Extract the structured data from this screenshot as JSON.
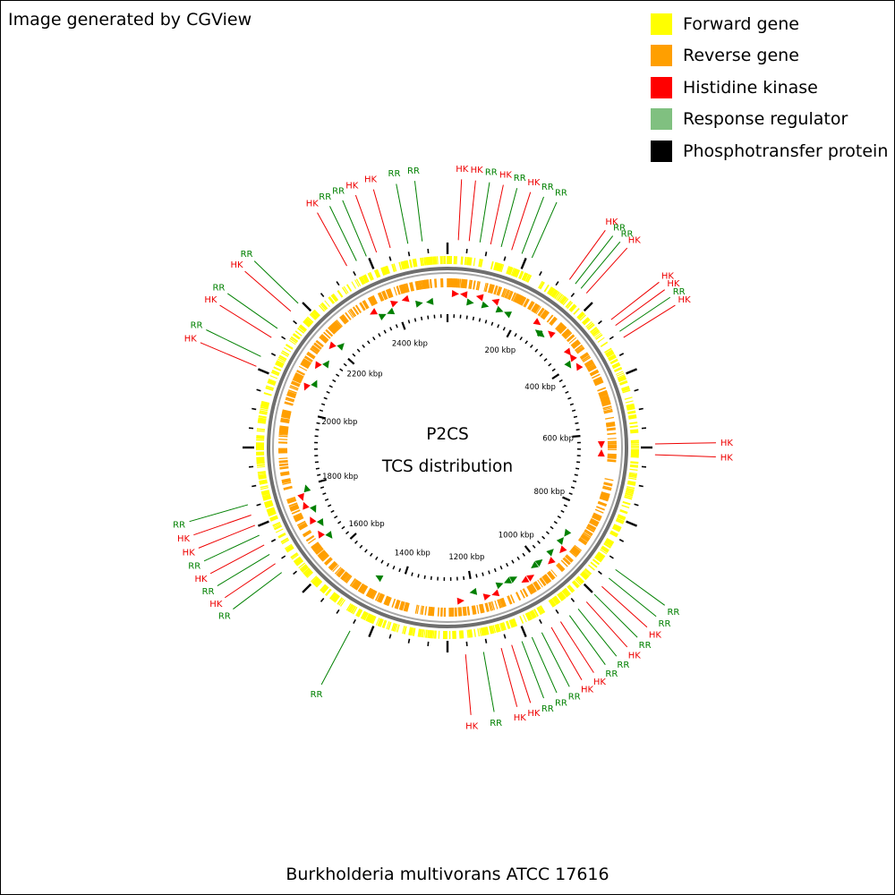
{
  "credit": "Image generated by CGView",
  "organism": "Burkholderia multivorans ATCC 17616",
  "center": {
    "line1": "P2CS",
    "line2": "TCS distribution"
  },
  "legend": [
    {
      "label": "Forward gene",
      "color": "#ffff00"
    },
    {
      "label": "Reverse gene",
      "color": "#ff9f00"
    },
    {
      "label": "Histidine kinase",
      "color": "#ff0000"
    },
    {
      "label": "Response regulator",
      "color": "#80c080"
    },
    {
      "label": "Phosphotransfer protein",
      "color": "#000000"
    }
  ],
  "ruler_labels": [
    "200 kbp",
    "400 kbp",
    "600 kbp",
    "800 kbp",
    "1000 kbp",
    "1200 kbp",
    "1400 kbp",
    "1600 kbp",
    "1800 kbp",
    "2000 kbp",
    "2200 kbp",
    "2400 kbp"
  ],
  "genome_length_kbp": 2540,
  "tcs_label_colors": {
    "HK": "#ee0000",
    "RR": "#008000"
  },
  "tcs_labels": [
    {
      "text": "HK",
      "deg": 3,
      "band": 0
    },
    {
      "text": "HK",
      "deg": 6,
      "band": 0
    },
    {
      "text": "RR",
      "deg": 9,
      "band": 0
    },
    {
      "text": "HK",
      "deg": 12,
      "band": 0
    },
    {
      "text": "RR",
      "deg": 15,
      "band": 0
    },
    {
      "text": "HK",
      "deg": 18,
      "band": 0
    },
    {
      "text": "RR",
      "deg": 21,
      "band": 0
    },
    {
      "text": "RR",
      "deg": 24,
      "band": 0
    },
    {
      "text": "HK",
      "deg": 36,
      "band": 0
    },
    {
      "text": "RR",
      "deg": 38,
      "band": 0
    },
    {
      "text": "RR",
      "deg": 40,
      "band": 0
    },
    {
      "text": "HK",
      "deg": 42,
      "band": 0
    },
    {
      "text": "HK",
      "deg": 52,
      "band": 0
    },
    {
      "text": "HK",
      "deg": 54,
      "band": 0
    },
    {
      "text": "RR",
      "deg": 56,
      "band": 0
    },
    {
      "text": "HK",
      "deg": 58,
      "band": 0
    },
    {
      "text": "HK",
      "deg": 89,
      "band": 0
    },
    {
      "text": "HK",
      "deg": 92,
      "band": 0
    },
    {
      "text": "RR",
      "deg": 126,
      "band": 0
    },
    {
      "text": "RR",
      "deg": 129,
      "band": 0
    },
    {
      "text": "HK",
      "deg": 132,
      "band": 0
    },
    {
      "text": "RR",
      "deg": 135,
      "band": 0
    },
    {
      "text": "HK",
      "deg": 138,
      "band": 0
    },
    {
      "text": "RR",
      "deg": 141,
      "band": 0
    },
    {
      "text": "RR",
      "deg": 144,
      "band": 0
    },
    {
      "text": "HK",
      "deg": 147,
      "band": 0
    },
    {
      "text": "HK",
      "deg": 150,
      "band": 0
    },
    {
      "text": "RR",
      "deg": 153,
      "band": 0
    },
    {
      "text": "RR",
      "deg": 156,
      "band": 0
    },
    {
      "text": "RR",
      "deg": 159,
      "band": 0
    },
    {
      "text": "HK",
      "deg": 162,
      "band": 0
    },
    {
      "text": "HK",
      "deg": 165,
      "band": 0
    },
    {
      "text": "RR",
      "deg": 170,
      "band": 0
    },
    {
      "text": "HK",
      "deg": 175,
      "band": 0
    },
    {
      "text": "RR",
      "deg": 208,
      "band": 0
    },
    {
      "text": "RR",
      "deg": 233,
      "band": 0
    },
    {
      "text": "HK",
      "deg": 236,
      "band": 0
    },
    {
      "text": "RR",
      "deg": 239,
      "band": 0
    },
    {
      "text": "HK",
      "deg": 242,
      "band": 0
    },
    {
      "text": "RR",
      "deg": 245,
      "band": 0
    },
    {
      "text": "HK",
      "deg": 248,
      "band": 0
    },
    {
      "text": "HK",
      "deg": 251,
      "band": 0
    },
    {
      "text": "RR",
      "deg": 254,
      "band": 0
    },
    {
      "text": "HK",
      "deg": 293,
      "band": 0
    },
    {
      "text": "RR",
      "deg": 296,
      "band": 0
    },
    {
      "text": "HK",
      "deg": 302,
      "band": 0
    },
    {
      "text": "RR",
      "deg": 305,
      "band": 0
    },
    {
      "text": "HK",
      "deg": 311,
      "band": 0
    },
    {
      "text": "RR",
      "deg": 314,
      "band": 0
    },
    {
      "text": "HK",
      "deg": 331,
      "band": 0
    },
    {
      "text": "RR",
      "deg": 334,
      "band": 0
    },
    {
      "text": "RR",
      "deg": 337,
      "band": 0
    },
    {
      "text": "HK",
      "deg": 340,
      "band": 0
    },
    {
      "text": "HK",
      "deg": 344,
      "band": 0
    },
    {
      "text": "RR",
      "deg": 349,
      "band": 0
    },
    {
      "text": "RR",
      "deg": 353,
      "band": 0
    }
  ]
}
